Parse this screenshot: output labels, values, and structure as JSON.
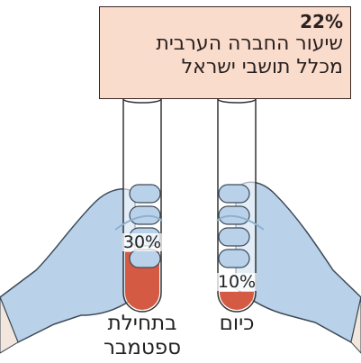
{
  "chart_data": {
    "type": "tube",
    "headline": "22%",
    "title": [
      "שיעור החברה הערבית",
      "מכלל תושבי ישראל"
    ],
    "categories": [
      "בתחילת ספטמבר",
      "כיום"
    ],
    "values": [
      30,
      10
    ],
    "value_labels": [
      "30%",
      "10%"
    ],
    "color": "#d45a43",
    "ylim": [
      0,
      100
    ]
  }
}
